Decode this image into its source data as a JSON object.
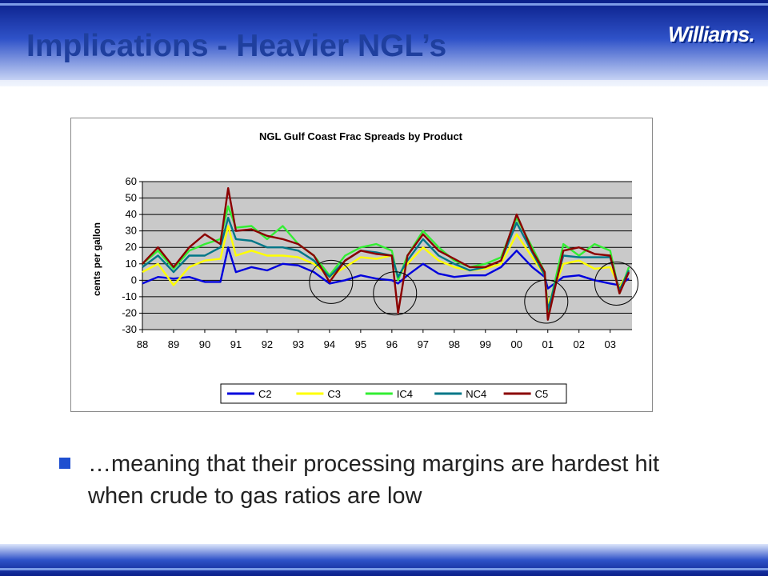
{
  "slide": {
    "title": "Implications - Heavier NGL’s",
    "logo_text": "Williams.",
    "bullet": "…meaning that their processing margins are hardest hit when crude to gas ratios are low"
  },
  "colors": {
    "title": "#1f3f9e",
    "band_dark": "#0a1f8a",
    "band_light": "#7c9be6",
    "bullet": "#1f4fd0",
    "plot_bg": "#c9c9c9"
  },
  "icons": {
    "bullet": "square-bullet-icon"
  },
  "chart_data": {
    "type": "line",
    "title": "NGL Gulf Coast Frac Spreads by Product",
    "ylabel": "cents per gallon",
    "xlabel": "",
    "ylim": [
      -30,
      60
    ],
    "yticks": [
      60,
      50,
      40,
      30,
      20,
      10,
      0,
      -10,
      -20,
      -30
    ],
    "xlim": [
      1988,
      2003.7
    ],
    "xtick_labels": [
      "88",
      "89",
      "90",
      "91",
      "92",
      "93",
      "94",
      "95",
      "96",
      "97",
      "98",
      "99",
      "00",
      "01",
      "02",
      "03"
    ],
    "grid": "horizontal",
    "legend_position": "bottom",
    "x": [
      1988.0,
      1988.5,
      1989.0,
      1989.5,
      1990.0,
      1990.5,
      1990.75,
      1991.0,
      1991.5,
      1992.0,
      1992.5,
      1993.0,
      1993.5,
      1994.0,
      1994.5,
      1995.0,
      1995.5,
      1996.0,
      1996.2,
      1996.5,
      1997.0,
      1997.5,
      1998.0,
      1998.5,
      1999.0,
      1999.5,
      2000.0,
      2000.5,
      2000.9,
      2001.0,
      2001.5,
      2002.0,
      2002.5,
      2003.0,
      2003.3,
      2003.6
    ],
    "series": [
      {
        "name": "C2",
        "color": "#0000dd",
        "values": [
          -2,
          2,
          1,
          2,
          -1,
          -1,
          20,
          5,
          8,
          6,
          10,
          9,
          5,
          -2,
          0,
          3,
          1,
          0,
          -2,
          3,
          10,
          4,
          2,
          3,
          3,
          8,
          18,
          8,
          2,
          -5,
          2,
          3,
          0,
          -2,
          -3,
          1
        ]
      },
      {
        "name": "C3",
        "color": "#ffff00",
        "values": [
          5,
          10,
          -3,
          8,
          12,
          13,
          33,
          15,
          18,
          15,
          15,
          14,
          10,
          2,
          8,
          14,
          13,
          15,
          2,
          10,
          20,
          12,
          8,
          6,
          7,
          10,
          28,
          14,
          3,
          -15,
          10,
          12,
          7,
          8,
          -4,
          6
        ]
      },
      {
        "name": "IC4",
        "color": "#33ee33",
        "values": [
          10,
          18,
          7,
          18,
          22,
          25,
          45,
          32,
          33,
          25,
          33,
          22,
          15,
          3,
          15,
          20,
          22,
          18,
          0,
          15,
          30,
          20,
          12,
          8,
          10,
          14,
          38,
          20,
          5,
          -20,
          22,
          15,
          22,
          18,
          -8,
          8
        ]
      },
      {
        "name": "NC4",
        "color": "#007788",
        "values": [
          8,
          15,
          5,
          15,
          15,
          20,
          38,
          25,
          24,
          20,
          20,
          18,
          12,
          2,
          12,
          18,
          17,
          15,
          2,
          12,
          25,
          15,
          10,
          6,
          8,
          12,
          35,
          17,
          3,
          -18,
          15,
          14,
          14,
          14,
          -6,
          6
        ]
      },
      {
        "name": "C5",
        "color": "#8b0000",
        "values": [
          10,
          20,
          8,
          20,
          28,
          22,
          56,
          30,
          31,
          27,
          25,
          22,
          15,
          -1,
          12,
          18,
          16,
          15,
          -20,
          15,
          28,
          18,
          13,
          8,
          8,
          12,
          40,
          18,
          5,
          -24,
          18,
          20,
          16,
          15,
          -8,
          5
        ]
      }
    ],
    "annotations": [
      {
        "type": "circle",
        "x": 1994.05,
        "y": -1
      },
      {
        "type": "circle",
        "x": 1996.1,
        "y": -8
      },
      {
        "type": "circle",
        "x": 2000.95,
        "y": -13
      },
      {
        "type": "circle",
        "x": 2003.2,
        "y": -2
      }
    ]
  }
}
